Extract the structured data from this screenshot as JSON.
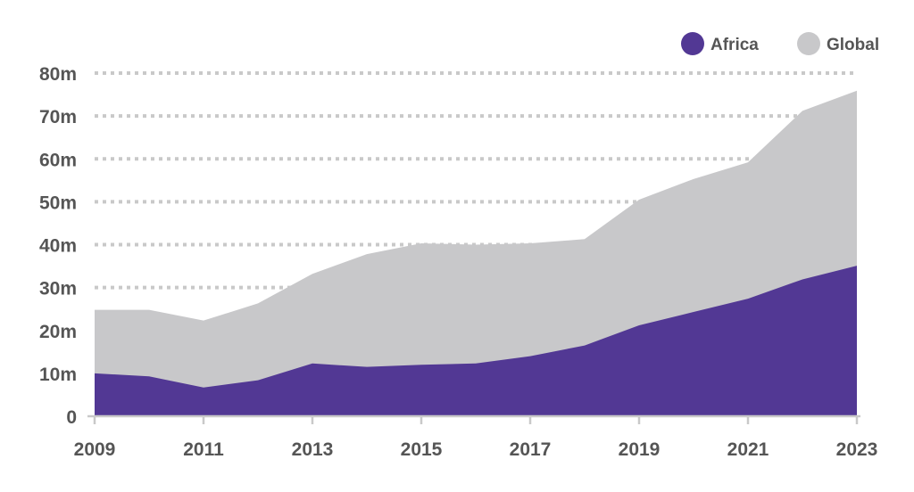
{
  "chart_data": {
    "type": "area",
    "x": [
      2009,
      2010,
      2011,
      2012,
      2013,
      2014,
      2015,
      2016,
      2017,
      2018,
      2019,
      2020,
      2021,
      2022,
      2023
    ],
    "x_tick_labels": [
      "2009",
      "2011",
      "2013",
      "2015",
      "2017",
      "2019",
      "2021",
      "2023"
    ],
    "y_tick_labels": [
      "0",
      "10m",
      "20m",
      "30m",
      "40m",
      "50m",
      "60m",
      "70m",
      "80m"
    ],
    "ylim": [
      0,
      80
    ],
    "grid": true,
    "legend_position": "top-right",
    "series": [
      {
        "name": "Global",
        "color": "#c8c8ca",
        "values": [
          24.8,
          24.8,
          22.3,
          26.3,
          33.2,
          37.8,
          40.3,
          40.0,
          40.3,
          41.3,
          50.5,
          55.3,
          59.2,
          71.2,
          75.9
        ]
      },
      {
        "name": "Africa",
        "color": "#523894",
        "values": [
          10.0,
          9.3,
          6.7,
          8.4,
          12.3,
          11.5,
          12.0,
          12.3,
          14.0,
          16.5,
          21.2,
          24.3,
          27.4,
          31.9,
          35.1
        ]
      }
    ]
  }
}
